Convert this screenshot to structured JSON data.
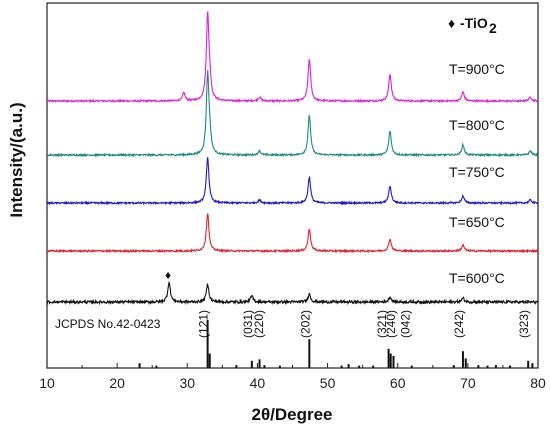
{
  "chart_data": {
    "type": "line",
    "xlabel": "2θ/Degree",
    "ylabel": "Intensity/(a.u.)",
    "xlim": [
      10,
      80
    ],
    "x_ticks": [
      "10",
      "20",
      "30",
      "40",
      "50",
      "60",
      "70",
      "80"
    ],
    "legend_marker": "♦",
    "legend_text": "-TiO",
    "legend_subscript": "2",
    "reference_label": "JCPDS No.42-0423",
    "tio2_peak_2theta": 27.4,
    "series": [
      {
        "name": "T=900°C",
        "color": "#e020d8",
        "peaks": [
          [
            29.5,
            8
          ],
          [
            32.9,
            84
          ],
          [
            33.2,
            15
          ],
          [
            40.3,
            4
          ],
          [
            47.4,
            42
          ],
          [
            58.9,
            27
          ],
          [
            69.3,
            9
          ],
          [
            78.9,
            4
          ]
        ]
      },
      {
        "name": "T=800°C",
        "color": "#1c8a80",
        "peaks": [
          [
            32.9,
            80
          ],
          [
            33.2,
            14
          ],
          [
            40.3,
            4
          ],
          [
            47.4,
            40
          ],
          [
            58.9,
            24
          ],
          [
            69.3,
            10
          ],
          [
            78.9,
            4
          ]
        ]
      },
      {
        "name": "T=750°C",
        "color": "#1a1acc",
        "peaks": [
          [
            32.9,
            46
          ],
          [
            40.3,
            3
          ],
          [
            47.4,
            26
          ],
          [
            58.9,
            17
          ],
          [
            69.3,
            7
          ],
          [
            78.9,
            3
          ]
        ]
      },
      {
        "name": "T=650°C",
        "color": "#e0202a",
        "peaks": [
          [
            32.9,
            38
          ],
          [
            47.4,
            22
          ],
          [
            58.9,
            12
          ],
          [
            69.3,
            6
          ]
        ]
      },
      {
        "name": "T=600°C",
        "color": "#111111",
        "peaks": [
          [
            27.4,
            20
          ],
          [
            32.9,
            18
          ],
          [
            39.2,
            6
          ],
          [
            47.4,
            8
          ],
          [
            58.9,
            5
          ],
          [
            69.3,
            4
          ]
        ]
      }
    ],
    "reference_lines": [
      [
        23.2,
        10
      ],
      [
        25.6,
        5
      ],
      [
        32.9,
        100
      ],
      [
        33.2,
        30
      ],
      [
        37.0,
        6
      ],
      [
        39.2,
        15
      ],
      [
        40.3,
        18
      ],
      [
        41.0,
        6
      ],
      [
        43.2,
        5
      ],
      [
        47.4,
        60
      ],
      [
        52.0,
        5
      ],
      [
        53.0,
        8
      ],
      [
        54.5,
        5
      ],
      [
        56.5,
        5
      ],
      [
        58.7,
        40
      ],
      [
        59.0,
        30
      ],
      [
        59.4,
        25
      ],
      [
        62.0,
        5
      ],
      [
        68.0,
        6
      ],
      [
        69.3,
        35
      ],
      [
        69.7,
        20
      ],
      [
        71.5,
        6
      ],
      [
        72.8,
        5
      ],
      [
        74.0,
        6
      ],
      [
        76.0,
        5
      ],
      [
        78.6,
        15
      ],
      [
        79.2,
        10
      ]
    ],
    "hkl_labels": [
      {
        "text": "(121)",
        "x": 32.9
      },
      {
        "text": "(031)",
        "x": 39.2
      },
      {
        "text": "(220)",
        "x": 40.8
      },
      {
        "text": "(202)",
        "x": 47.4
      },
      {
        "text": "(321)",
        "x": 58.3
      },
      {
        "text": "(240)",
        "x": 59.6
      },
      {
        "text": "(042)",
        "x": 61.7
      },
      {
        "text": "(242)",
        "x": 69.3
      },
      {
        "text": "(323)",
        "x": 78.6
      }
    ]
  }
}
